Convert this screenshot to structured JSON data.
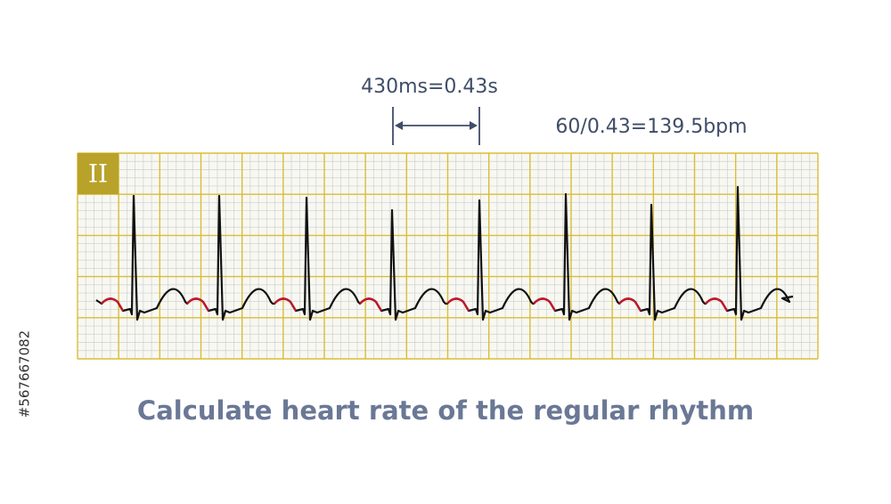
{
  "lead_label": "II",
  "interval_label": "430ms=0.43s",
  "rate_label": "60/0.43=139.5bpm",
  "caption": "Calculate heart rate of the regular rhythm",
  "watermark": "#567667082"
}
